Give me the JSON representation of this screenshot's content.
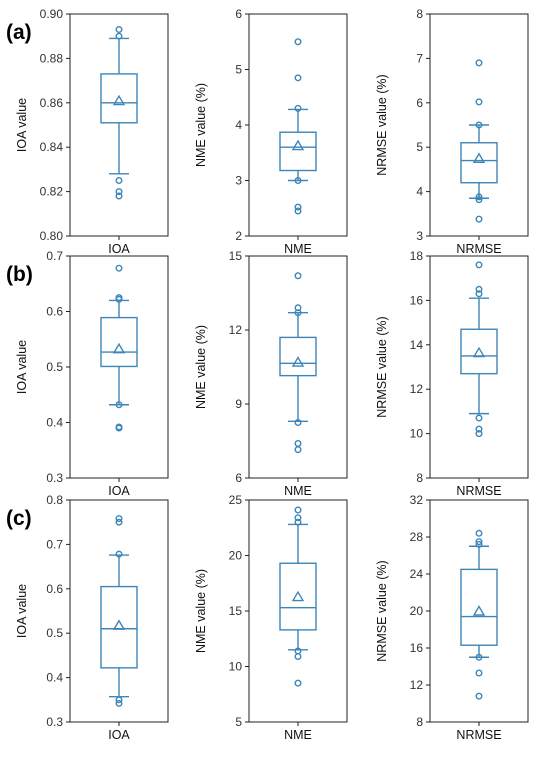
{
  "colors": {
    "box": "#3d86b8",
    "frame": "#222222",
    "text": "#222222"
  },
  "panel_labels": [
    "(a)",
    "(b)",
    "(c)"
  ],
  "chart_data": [
    {
      "type": "box",
      "row": 0,
      "col": 0,
      "ylabel": "IOA value",
      "category": "IOA",
      "ylim": [
        0.8,
        0.9
      ],
      "ticks": [
        "0.80",
        "0.82",
        "0.84",
        "0.86",
        "0.88",
        "0.90"
      ],
      "min": 0.828,
      "q1": 0.851,
      "median": 0.86,
      "q3": 0.873,
      "max": 0.889,
      "mean": 0.861,
      "outliers": [
        0.893,
        0.89,
        0.825,
        0.82,
        0.818
      ]
    },
    {
      "type": "box",
      "row": 0,
      "col": 1,
      "ylabel": "NME value (%)",
      "category": "NME",
      "ylim": [
        2,
        6
      ],
      "ticks": [
        "2",
        "3",
        "4",
        "5",
        "6"
      ],
      "min": 3.0,
      "q1": 3.18,
      "median": 3.6,
      "q3": 3.87,
      "max": 4.28,
      "mean": 3.63,
      "outliers": [
        5.5,
        4.85,
        4.3,
        3.0,
        2.52,
        2.45
      ]
    },
    {
      "type": "box",
      "row": 0,
      "col": 2,
      "ylabel": "NRMSE value (%)",
      "category": "NRMSE",
      "ylim": [
        3,
        8
      ],
      "ticks": [
        "3",
        "4",
        "5",
        "6",
        "7",
        "8"
      ],
      "min": 3.85,
      "q1": 4.2,
      "median": 4.7,
      "q3": 5.1,
      "max": 5.5,
      "mean": 4.75,
      "outliers": [
        6.9,
        6.02,
        5.5,
        3.88,
        3.82,
        3.38
      ]
    },
    {
      "type": "box",
      "row": 1,
      "col": 0,
      "ylabel": "IOA value",
      "category": "IOA",
      "ylim": [
        0.3,
        0.7
      ],
      "ticks": [
        "0.3",
        "0.4",
        "0.5",
        "0.6",
        "0.7"
      ],
      "min": 0.432,
      "q1": 0.501,
      "median": 0.527,
      "q3": 0.589,
      "max": 0.62,
      "mean": 0.533,
      "outliers": [
        0.678,
        0.625,
        0.622,
        0.432,
        0.392,
        0.39
      ]
    },
    {
      "type": "box",
      "row": 1,
      "col": 1,
      "ylabel": "NME value (%)",
      "category": "NME",
      "ylim": [
        6,
        15
      ],
      "ticks": [
        "6",
        "9",
        "12",
        "15"
      ],
      "min": 8.3,
      "q1": 10.15,
      "median": 10.65,
      "q3": 11.7,
      "max": 12.7,
      "mean": 10.7,
      "outliers": [
        14.2,
        12.9,
        12.7,
        8.25,
        7.4,
        7.15
      ]
    },
    {
      "type": "box",
      "row": 1,
      "col": 2,
      "ylabel": "NRMSE value (%)",
      "category": "NRMSE",
      "ylim": [
        8,
        18
      ],
      "ticks": [
        "8",
        "10",
        "12",
        "14",
        "16",
        "18"
      ],
      "min": 10.9,
      "q1": 12.7,
      "median": 13.5,
      "q3": 14.7,
      "max": 16.1,
      "mean": 13.65,
      "outliers": [
        17.6,
        16.5,
        16.3,
        10.7,
        10.2,
        10.0
      ]
    },
    {
      "type": "box",
      "row": 2,
      "col": 0,
      "ylabel": "IOA value",
      "category": "IOA",
      "ylim": [
        0.3,
        0.8
      ],
      "ticks": [
        "0.3",
        "0.4",
        "0.5",
        "0.6",
        "0.7",
        "0.8"
      ],
      "min": 0.357,
      "q1": 0.422,
      "median": 0.51,
      "q3": 0.605,
      "max": 0.676,
      "mean": 0.518,
      "outliers": [
        0.758,
        0.75,
        0.678,
        0.35,
        0.342
      ]
    },
    {
      "type": "box",
      "row": 2,
      "col": 1,
      "ylabel": "NME value (%)",
      "category": "NME",
      "ylim": [
        5,
        25
      ],
      "ticks": [
        "5",
        "10",
        "15",
        "20",
        "25"
      ],
      "min": 11.5,
      "q1": 13.3,
      "median": 15.3,
      "q3": 19.3,
      "max": 22.8,
      "mean": 16.3,
      "outliers": [
        24.1,
        23.4,
        23.0,
        11.4,
        10.9,
        8.5
      ]
    },
    {
      "type": "box",
      "row": 2,
      "col": 2,
      "ylabel": "NRMSE value (%)",
      "category": "NRMSE",
      "ylim": [
        8,
        32
      ],
      "ticks": [
        "8",
        "12",
        "16",
        "20",
        "24",
        "28",
        "32"
      ],
      "min": 15.0,
      "q1": 16.3,
      "median": 19.4,
      "q3": 24.5,
      "max": 27.0,
      "mean": 20.0,
      "outliers": [
        28.4,
        27.5,
        27.2,
        15.0,
        13.3,
        10.8
      ]
    }
  ]
}
